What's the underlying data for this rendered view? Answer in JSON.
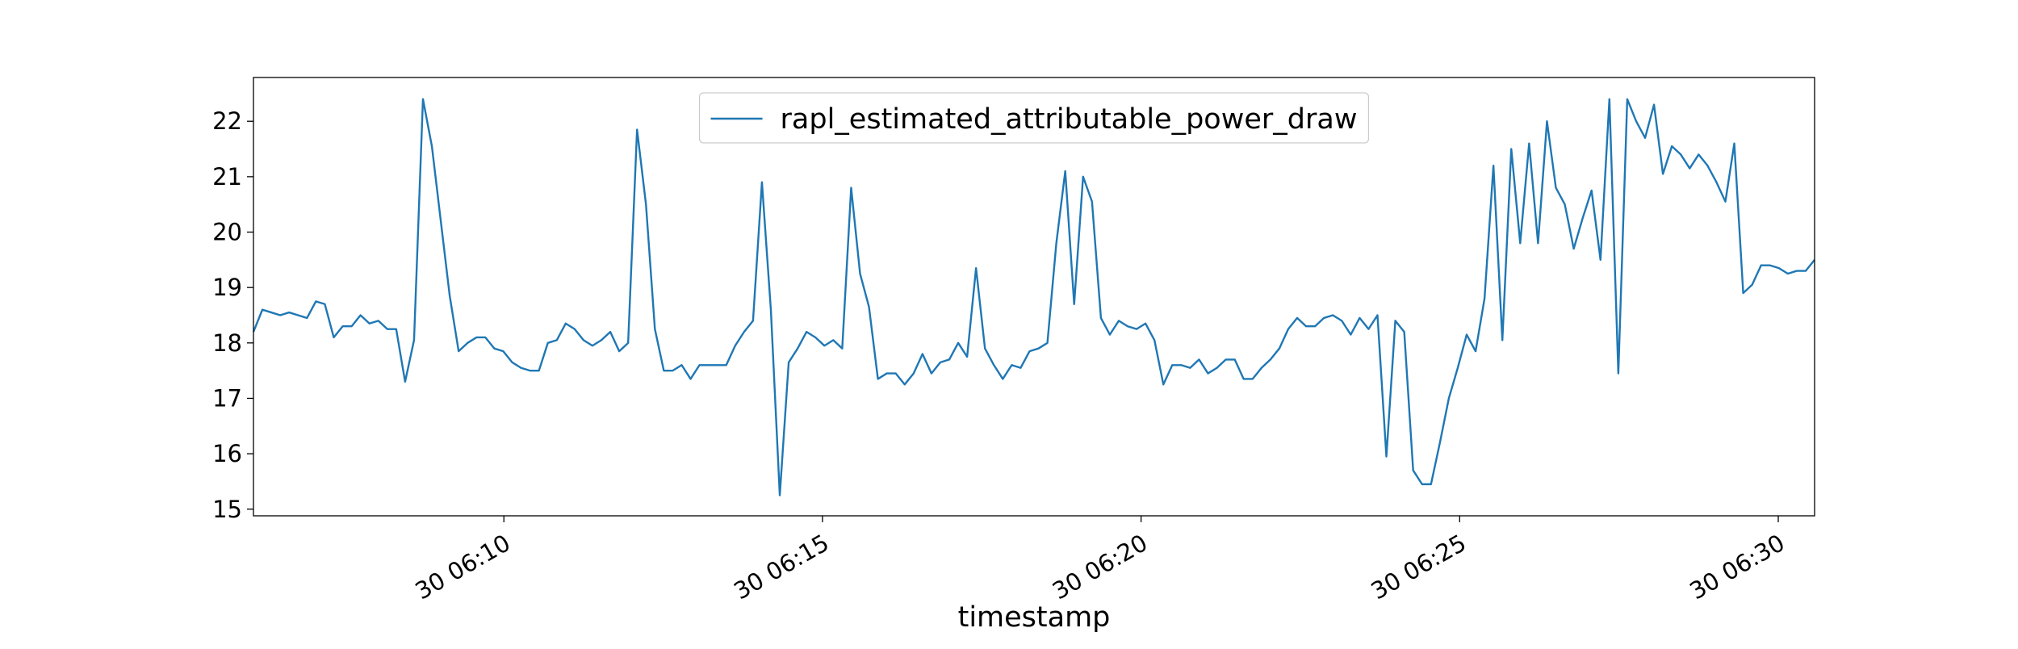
{
  "chart_data": {
    "type": "line",
    "xlabel": "timestamp",
    "legend": "upper center",
    "x": [
      6.07,
      6.21,
      6.35,
      6.49,
      6.63,
      6.77,
      6.91,
      7.05,
      7.19,
      7.33,
      7.47,
      7.61,
      7.75,
      7.89,
      8.03,
      8.17,
      8.31,
      8.45,
      8.59,
      8.73,
      8.87,
      9.01,
      9.15,
      9.29,
      9.43,
      9.57,
      9.71,
      9.85,
      9.99,
      10.13,
      10.27,
      10.41,
      10.55,
      10.69,
      10.83,
      10.97,
      11.11,
      11.25,
      11.39,
      11.53,
      11.67,
      11.81,
      11.95,
      12.09,
      12.23,
      12.37,
      12.51,
      12.65,
      12.79,
      12.93,
      13.07,
      13.21,
      13.35,
      13.49,
      13.63,
      13.77,
      13.91,
      14.05,
      14.19,
      14.33,
      14.47,
      14.61,
      14.75,
      14.89,
      15.03,
      15.17,
      15.31,
      15.45,
      15.59,
      15.73,
      15.87,
      16.01,
      16.15,
      16.29,
      16.43,
      16.57,
      16.71,
      16.85,
      16.99,
      17.13,
      17.27,
      17.41,
      17.55,
      17.69,
      17.83,
      17.97,
      18.11,
      18.25,
      18.39,
      18.53,
      18.67,
      18.81,
      18.95,
      19.09,
      19.23,
      19.37,
      19.51,
      19.65,
      19.79,
      19.93,
      20.07,
      20.21,
      20.35,
      20.49,
      20.63,
      20.77,
      20.91,
      21.05,
      21.19,
      21.33,
      21.47,
      21.61,
      21.75,
      21.89,
      22.03,
      22.17,
      22.31,
      22.45,
      22.59,
      22.73,
      22.87,
      23.01,
      23.15,
      23.29,
      23.43,
      23.57,
      23.71,
      23.85,
      23.99,
      24.13,
      24.27,
      24.41,
      24.55,
      24.69,
      24.83,
      24.97,
      25.11,
      25.25,
      25.39,
      25.53,
      25.67,
      25.81,
      25.95,
      26.09,
      26.23,
      26.37,
      26.51,
      26.65,
      26.79,
      26.93,
      27.07,
      27.21,
      27.35,
      27.49,
      27.63,
      27.77,
      27.91,
      28.05,
      28.19,
      28.33,
      28.47,
      28.61,
      28.75,
      28.89,
      29.03,
      29.17,
      29.31,
      29.45,
      29.59,
      29.73,
      29.87,
      30.01,
      30.15,
      30.29,
      30.43,
      30.57
    ],
    "series": [
      {
        "name": "rapl_estimated_attributable_power_draw",
        "color": "#1f77b4",
        "values": [
          18.2,
          18.6,
          18.55,
          18.5,
          18.55,
          18.5,
          18.45,
          18.75,
          18.7,
          18.1,
          18.3,
          18.3,
          18.5,
          18.35,
          18.4,
          18.25,
          18.25,
          17.3,
          18.05,
          22.4,
          21.55,
          20.2,
          18.85,
          17.85,
          18.0,
          18.1,
          18.1,
          17.9,
          17.85,
          17.65,
          17.55,
          17.5,
          17.5,
          18.0,
          18.05,
          18.35,
          18.25,
          18.05,
          17.95,
          18.05,
          18.2,
          17.85,
          18.0,
          21.85,
          20.5,
          18.25,
          17.5,
          17.5,
          17.6,
          17.35,
          17.6,
          17.6,
          17.6,
          17.6,
          17.95,
          18.2,
          18.4,
          20.9,
          18.6,
          15.25,
          17.65,
          17.9,
          18.2,
          18.1,
          17.95,
          18.05,
          17.9,
          20.8,
          19.25,
          18.65,
          17.35,
          17.45,
          17.45,
          17.25,
          17.45,
          17.8,
          17.45,
          17.65,
          17.7,
          18.0,
          17.75,
          19.35,
          17.9,
          17.6,
          17.35,
          17.6,
          17.55,
          17.85,
          17.9,
          18.0,
          19.8,
          21.1,
          18.7,
          21.0,
          20.55,
          18.45,
          18.15,
          18.4,
          18.3,
          18.25,
          18.35,
          18.05,
          17.25,
          17.6,
          17.6,
          17.55,
          17.7,
          17.45,
          17.55,
          17.7,
          17.7,
          17.35,
          17.35,
          17.55,
          17.7,
          17.9,
          18.25,
          18.45,
          18.3,
          18.3,
          18.45,
          18.5,
          18.4,
          18.15,
          18.45,
          18.25,
          18.5,
          15.95,
          18.4,
          18.2,
          15.7,
          15.45,
          15.45,
          16.2,
          17.0,
          17.55,
          18.15,
          17.85,
          18.8,
          21.2,
          18.05,
          21.5,
          19.8,
          21.6,
          19.8,
          22.0,
          20.8,
          20.5,
          19.7,
          20.25,
          20.75,
          19.5,
          22.4,
          17.45,
          22.4,
          22.0,
          21.7,
          22.3,
          21.05,
          21.55,
          21.4,
          21.15,
          21.4,
          21.2,
          20.9,
          20.55,
          21.6,
          18.9,
          19.05,
          19.4,
          19.4,
          19.35,
          19.25,
          19.3,
          19.3,
          19.5
        ]
      }
    ],
    "xlim": [
      6.07,
      30.57
    ],
    "xticks": [
      {
        "value": 10,
        "label": "30 06:10"
      },
      {
        "value": 15,
        "label": "30 06:15"
      },
      {
        "value": 20,
        "label": "30 06:20"
      },
      {
        "value": 25,
        "label": "30 06:25"
      },
      {
        "value": 30,
        "label": "30 06:30"
      }
    ],
    "ylim": [
      14.88,
      22.79
    ],
    "yticks": [
      15,
      16,
      17,
      18,
      19,
      20,
      21,
      22
    ]
  }
}
